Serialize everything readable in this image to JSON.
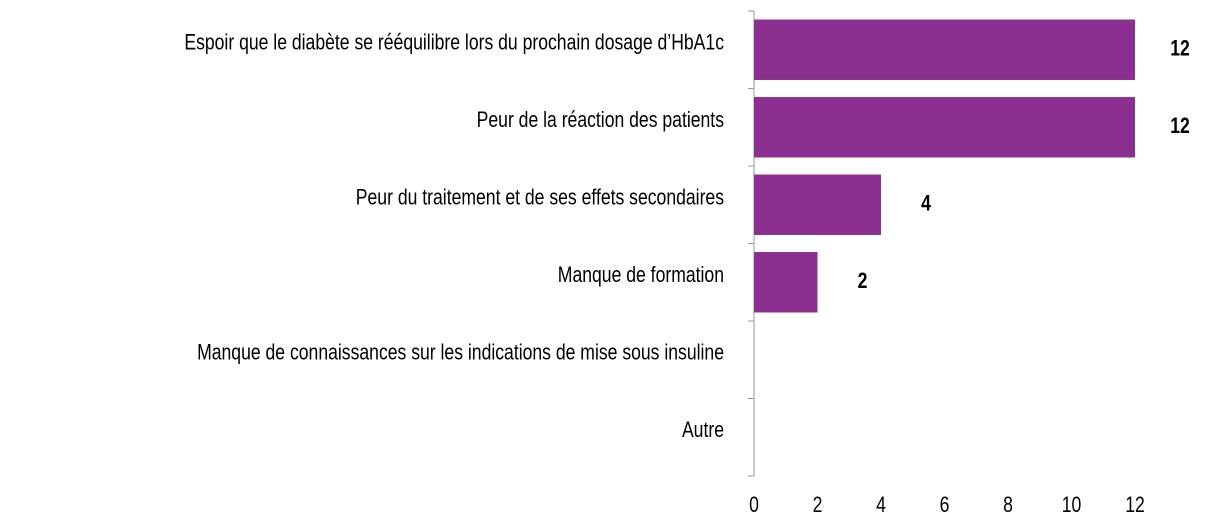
{
  "chart_data": {
    "type": "hbar",
    "categories": [
      "Espoir que le diabète se rééquilibre lors du prochain dosage d’HbA1c",
      "Peur de la réaction des patients",
      "Peur du traitement et de ses effets secondaires",
      "Manque de formation",
      "Manque de connaissances sur les indications de mise sous insuline",
      "Autre"
    ],
    "values": [
      12,
      12,
      4,
      2,
      0,
      0
    ],
    "value_labels": [
      "12",
      "12",
      "4",
      "2",
      null,
      null
    ],
    "color": "#8b3091",
    "xlim": [
      0,
      12
    ],
    "xticks": [
      0,
      2,
      4,
      6,
      8,
      10,
      12
    ]
  }
}
